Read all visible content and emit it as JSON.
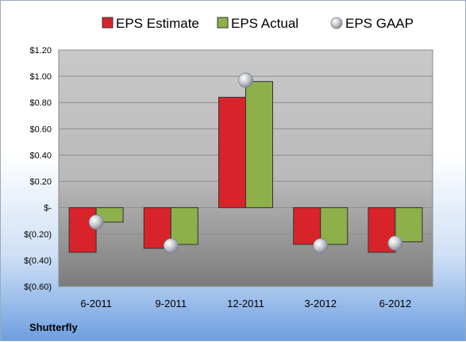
{
  "chart_data": {
    "type": "bar",
    "categories": [
      "6-2011",
      "9-2011",
      "12-2011",
      "3-2012",
      "6-2012"
    ],
    "series": [
      {
        "name": "EPS Estimate",
        "values": [
          -0.34,
          -0.31,
          0.84,
          -0.28,
          -0.34
        ],
        "color": "#d9232a"
      },
      {
        "name": "EPS Actual",
        "values": [
          -0.11,
          -0.28,
          0.96,
          -0.28,
          -0.26
        ],
        "color": "#8db04a"
      },
      {
        "name": "EPS GAAP",
        "values": [
          -0.11,
          -0.29,
          0.97,
          -0.29,
          -0.27
        ],
        "color": "#b8bcc4",
        "style": "marker"
      }
    ],
    "yticks": [
      {
        "value": 1.2,
        "label": "$1.20"
      },
      {
        "value": 1.0,
        "label": "$1.00"
      },
      {
        "value": 0.8,
        "label": "$0.80"
      },
      {
        "value": 0.6,
        "label": "$0.60"
      },
      {
        "value": 0.4,
        "label": "$0.40"
      },
      {
        "value": 0.2,
        "label": "$0.20"
      },
      {
        "value": 0.0,
        "label": "$-"
      },
      {
        "value": -0.2,
        "label": "$(0.20)"
      },
      {
        "value": -0.4,
        "label": "$(0.40)"
      },
      {
        "value": -0.6,
        "label": "$(0.60)"
      }
    ],
    "ylim": [
      -0.6,
      1.2
    ],
    "grid": true,
    "legend": "top",
    "company": "Shutterfly"
  }
}
